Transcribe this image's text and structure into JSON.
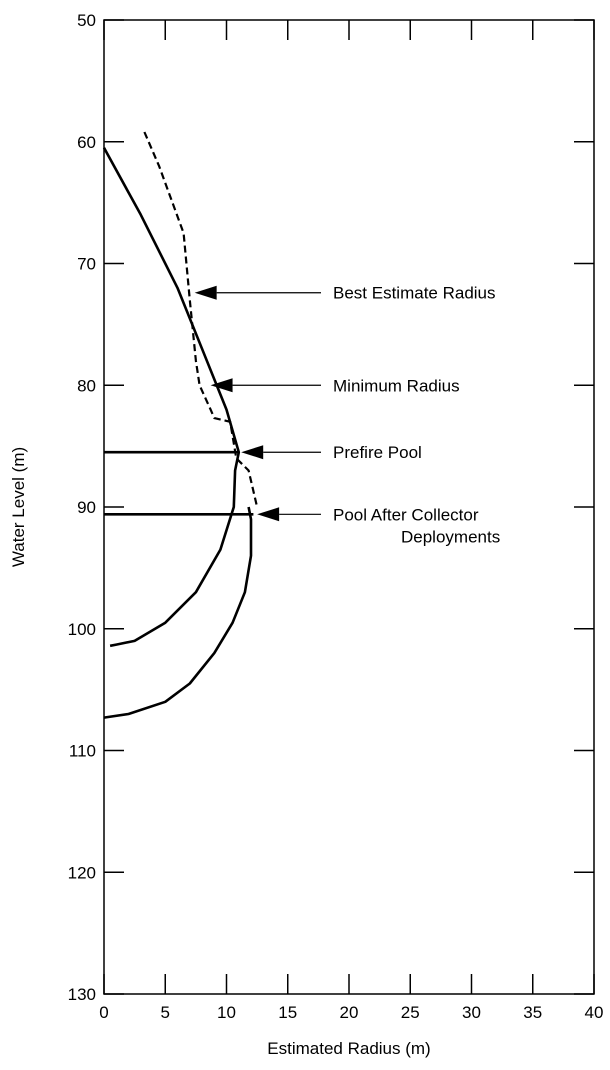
{
  "chart_data": {
    "type": "line",
    "xlabel": "Estimated Radius (m)",
    "ylabel": "Water Level (m)",
    "xlim": [
      0,
      40
    ],
    "ylim": [
      50,
      130
    ],
    "y_inverted": true,
    "xticks": [
      "0",
      "5",
      "10",
      "15",
      "20",
      "25",
      "30",
      "35",
      "40"
    ],
    "yticks": [
      "50",
      "60",
      "70",
      "80",
      "90",
      "100",
      "110",
      "120",
      "130"
    ],
    "grid": false,
    "legend": "none",
    "series": [
      {
        "style": "dashed",
        "points": [
          [
            3.3,
            59.2
          ],
          [
            4.5,
            62
          ],
          [
            6.5,
            67.5
          ],
          [
            7,
            73
          ],
          [
            7.5,
            78
          ],
          [
            7.8,
            80
          ],
          [
            8.7,
            82
          ],
          [
            9,
            82.7
          ],
          [
            10.3,
            83
          ],
          [
            10.8,
            86
          ],
          [
            11.8,
            87
          ],
          [
            12.5,
            90
          ]
        ]
      },
      {
        "style": "solid",
        "points": [
          [
            0,
            60.5
          ],
          [
            3,
            66
          ],
          [
            6,
            72
          ],
          [
            8,
            77
          ],
          [
            10,
            82
          ],
          [
            11,
            85.5
          ],
          [
            10.7,
            87
          ],
          [
            10.6,
            90
          ],
          [
            9.5,
            93.5
          ],
          [
            7.5,
            97
          ],
          [
            5,
            99.5
          ],
          [
            2.5,
            101
          ],
          [
            1,
            101.3
          ],
          [
            0.5,
            101.4
          ]
        ]
      },
      {
        "style": "solid",
        "points": [
          [
            0,
            107.3
          ],
          [
            2,
            107
          ],
          [
            5,
            106
          ],
          [
            7,
            104.5
          ],
          [
            9,
            102
          ],
          [
            10.5,
            99.5
          ],
          [
            11.5,
            97
          ],
          [
            12,
            94
          ],
          [
            12,
            91
          ],
          [
            11.8,
            90
          ]
        ]
      },
      {
        "style": "solid",
        "points": [
          [
            0,
            85.5
          ],
          [
            11,
            85.5
          ]
        ]
      },
      {
        "style": "solid",
        "points": [
          [
            0,
            90.6
          ],
          [
            12.2,
            90.6
          ]
        ]
      }
    ],
    "annotations": [
      {
        "text": [
          "Best Estimate Radius"
        ],
        "arrow_tip": [
          7.4,
          72.4
        ]
      },
      {
        "text": [
          "Minimum Radius"
        ],
        "arrow_tip": [
          8.7,
          80
        ]
      },
      {
        "text": [
          "Prefire Pool"
        ],
        "arrow_tip": [
          11.2,
          85.5
        ]
      },
      {
        "text": [
          "Pool After Collector",
          "Deployments"
        ],
        "arrow_tip": [
          12.5,
          90.6
        ]
      }
    ]
  }
}
